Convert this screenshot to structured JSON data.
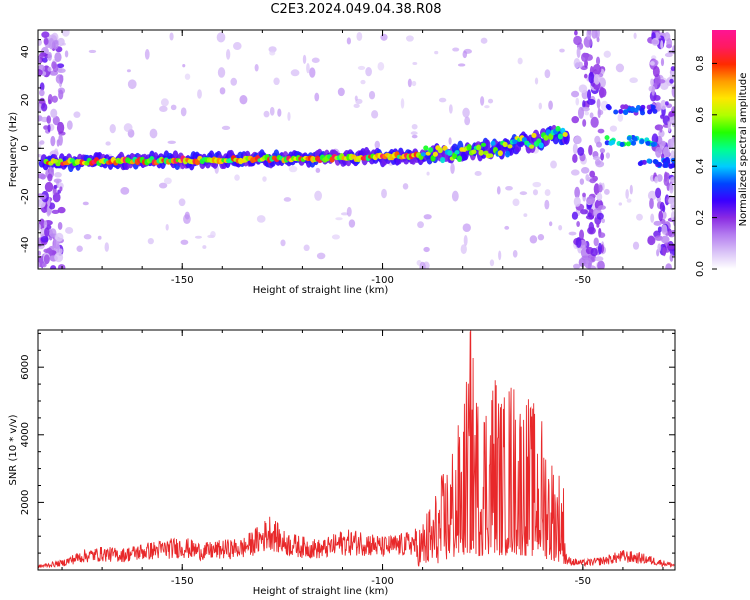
{
  "title": "C2E3.2024.049.04.38.R08",
  "colors": {
    "background": "#ffffff",
    "snr_line": "#e8282a",
    "colormap": [
      "#ffffff",
      "#d9c2f7",
      "#b57ef0",
      "#8a2be2",
      "#3a00ff",
      "#0044ff",
      "#00ccff",
      "#00ff90",
      "#22ff00",
      "#b0ff00",
      "#ffe600",
      "#ff9c00",
      "#ff2a00",
      "#ff1a60",
      "#ff1493"
    ]
  },
  "chart_data": [
    {
      "type": "heatmap",
      "title": "",
      "xlabel": "Height of straight line (km)",
      "ylabel": "Frequency (Hz)",
      "xlim": [
        -186,
        -27
      ],
      "ylim": [
        -50,
        49
      ],
      "xticks": [
        -150,
        -100,
        -50
      ],
      "yticks": [
        -40,
        -20,
        0,
        20,
        40
      ],
      "colorbar": {
        "label": "Normalized spectral amplitude",
        "range": [
          0,
          0.93
        ],
        "ticks": [
          0.0,
          0.2,
          0.4,
          0.6,
          0.8
        ]
      },
      "ridge": {
        "description": "main spectral ridge",
        "points": [
          [
            -185,
            -6
          ],
          [
            -150,
            -5
          ],
          [
            -110,
            -4
          ],
          [
            -90,
            -3
          ],
          [
            -70,
            0
          ],
          [
            -55,
            6
          ]
        ],
        "peak_amplitude": 0.9
      },
      "secondary_features": [
        {
          "x": -38,
          "y": 3,
          "amplitude": 0.5
        },
        {
          "x": -38,
          "y": 16,
          "amplitude": 0.35
        },
        {
          "x": -30,
          "y": -6,
          "amplitude": 0.4
        }
      ],
      "vertical_noise_bands": [
        [
          -186,
          -180
        ],
        [
          -52,
          -45
        ],
        [
          -33,
          -27
        ]
      ]
    },
    {
      "type": "line",
      "title": "",
      "xlabel": "Height of straight line (km)",
      "ylabel": "SNR (10 * v/v)",
      "xlim": [
        -186,
        -27
      ],
      "ylim": [
        0,
        7100
      ],
      "xticks": [
        -150,
        -100,
        -50
      ],
      "yticks": [
        2000,
        4000,
        6000
      ],
      "series": [
        {
          "color": "#e8282a",
          "envelope": [
            [
              -186,
              150
            ],
            [
              -180,
              300
            ],
            [
              -175,
              600
            ],
            [
              -170,
              700
            ],
            [
              -165,
              650
            ],
            [
              -160,
              800
            ],
            [
              -155,
              900
            ],
            [
              -150,
              1000
            ],
            [
              -145,
              800
            ],
            [
              -140,
              900
            ],
            [
              -135,
              950
            ],
            [
              -130,
              1400
            ],
            [
              -128,
              1700
            ],
            [
              -125,
              1200
            ],
            [
              -120,
              1000
            ],
            [
              -115,
              900
            ],
            [
              -110,
              1200
            ],
            [
              -105,
              1200
            ],
            [
              -100,
              1000
            ],
            [
              -95,
              1100
            ],
            [
              -92,
              1200
            ],
            [
              -90,
              1500
            ],
            [
              -88,
              2000
            ],
            [
              -86,
              2500
            ],
            [
              -84,
              3200
            ],
            [
              -82,
              4000
            ],
            [
              -80,
              4500
            ],
            [
              -78,
              7100
            ],
            [
              -76,
              5000
            ],
            [
              -74,
              5500
            ],
            [
              -72,
              6100
            ],
            [
              -70,
              5000
            ],
            [
              -68,
              5800
            ],
            [
              -66,
              5300
            ],
            [
              -64,
              5200
            ],
            [
              -62,
              4800
            ],
            [
              -60,
              4500
            ],
            [
              -58,
              3500
            ],
            [
              -56,
              3000
            ],
            [
              -55,
              3000
            ],
            [
              -54,
              400
            ],
            [
              -50,
              300
            ],
            [
              -45,
              400
            ],
            [
              -40,
              600
            ],
            [
              -35,
              500
            ],
            [
              -30,
              300
            ],
            [
              -27,
              200
            ]
          ]
        }
      ]
    }
  ]
}
